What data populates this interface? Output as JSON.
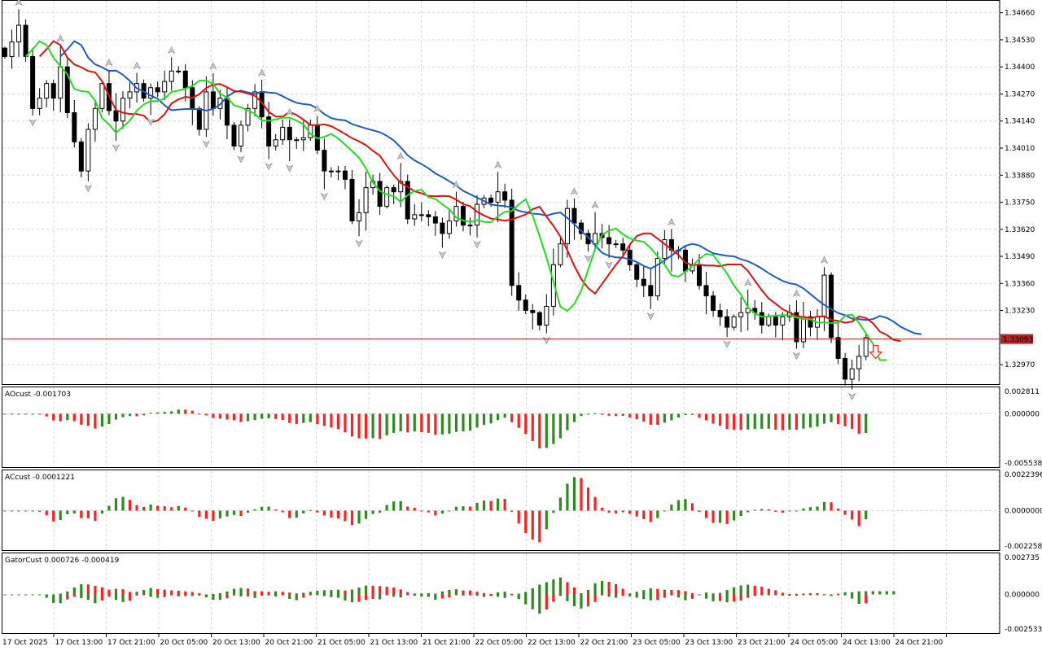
{
  "price_pane": {
    "last_price": "1.33093",
    "y_ticks": [
      "1.34660",
      "1.34530",
      "1.34400",
      "1.34270",
      "1.34140",
      "1.34010",
      "1.33880",
      "1.33750",
      "1.33620",
      "1.33490",
      "1.33360",
      "1.33230",
      "1.32970"
    ]
  },
  "ao_pane": {
    "label": "AOcust -0.001703",
    "ticks": [
      "0.002811",
      "0.000000",
      "-0.005538"
    ]
  },
  "ac_pane": {
    "label": "ACcust -0.0001221",
    "ticks": [
      "0.0022396",
      "0.0000000",
      "-0.0022587"
    ]
  },
  "gator_pane": {
    "label": "GatorCust 0.000726 -0.000419",
    "ticks": [
      "0.002735",
      "0.000000",
      "-0.002533"
    ]
  },
  "x_labels": [
    "17 Oct 2025",
    "17 Oct 13:00",
    "17 Oct 21:00",
    "20 Oct 05:00",
    "20 Oct 13:00",
    "20 Oct 21:00",
    "21 Oct 05:00",
    "21 Oct 13:00",
    "21 Oct 21:00",
    "22 Oct 05:00",
    "22 Oct 13:00",
    "22 Oct 21:00",
    "23 Oct 05:00",
    "23 Oct 13:00",
    "23 Oct 21:00",
    "24 Oct 05:00",
    "24 Oct 13:00",
    "24 Oct 21:00"
  ],
  "colors": {
    "bull": "#2e8b22",
    "bear": "#ff2020",
    "blue": "#1e5bc6",
    "red": "#dd1111",
    "green": "#22dd22",
    "price_line": "#b22222"
  },
  "chart_data": {
    "type": "candlestick",
    "symbol_timeframe": "H1",
    "closes": [
      1.3445,
      1.3452,
      1.346,
      1.3445,
      1.342,
      1.3425,
      1.3432,
      1.3425,
      1.344,
      1.3418,
      1.3404,
      1.339,
      1.341,
      1.342,
      1.3432,
      1.3419,
      1.3414,
      1.3425,
      1.3428,
      1.3432,
      1.3425,
      1.343,
      1.3428,
      1.3433,
      1.3438,
      1.3438,
      1.343,
      1.342,
      1.341,
      1.3428,
      1.342,
      1.3425,
      1.3412,
      1.3402,
      1.3412,
      1.342,
      1.3428,
      1.3416,
      1.3402,
      1.3405,
      1.3411,
      1.3405,
      1.3405,
      1.3406,
      1.3412,
      1.34,
      1.339,
      1.339,
      1.339,
      1.3386,
      1.3366,
      1.337,
      1.3382,
      1.3385,
      1.3373,
      1.3382,
      1.338,
      1.3385,
      1.3367,
      1.3369,
      1.3369,
      1.3368,
      1.3365,
      1.336,
      1.3366,
      1.3373,
      1.3364,
      1.3364,
      1.3374,
      1.3377,
      1.3375,
      1.338,
      1.3376,
      1.3335,
      1.3328,
      1.3323,
      1.3322,
      1.3316,
      1.3325,
      1.3345,
      1.3355,
      1.3372,
      1.3365,
      1.336,
      1.3355,
      1.336,
      1.3358,
      1.3355,
      1.3355,
      1.3352,
      1.3345,
      1.3338,
      1.3335,
      1.333,
      1.3348,
      1.3357,
      1.3352,
      1.3352,
      1.3342,
      1.3345,
      1.3335,
      1.333,
      1.3323,
      1.332,
      1.3315,
      1.332,
      1.3322,
      1.3324,
      1.3322,
      1.3316,
      1.332,
      1.3316,
      1.332,
      1.3322,
      1.3308,
      1.332,
      1.3315,
      1.332,
      1.334,
      1.331,
      1.33,
      1.329,
      1.3295,
      1.3301,
      1.331
    ],
    "last_price": 1.33093
  }
}
